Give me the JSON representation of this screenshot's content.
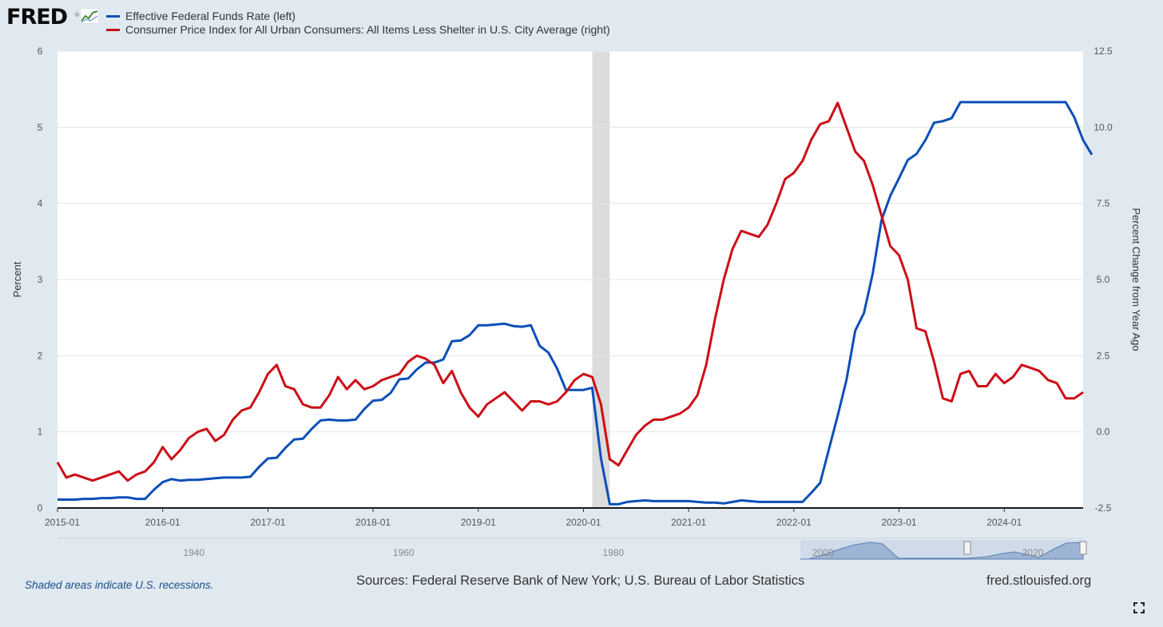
{
  "logo": {
    "text": "FRED",
    "mark": "®",
    "icon": "line-chart-icon"
  },
  "legend": [
    {
      "label": "Effective Federal Funds Rate (left)",
      "color": "#0b4fb8"
    },
    {
      "label": "Consumer Price Index for All Urban Consumers: All Items Less Shelter in U.S. City Average (right)",
      "color": "#cc0e16"
    }
  ],
  "footer": {
    "recession_note": "Shaded areas indicate U.S. recessions.",
    "sources": "Sources: Federal Reserve Bank of New York; U.S. Bureau of Labor Statistics",
    "site": "fred.stlouisfed.org"
  },
  "colors": {
    "background": "#e1e9f0",
    "plot": "#ffffff",
    "recession": "#dcdcdc",
    "navigator_fill": "#9db4d4"
  },
  "chart_data": {
    "type": "line",
    "xlabel": "",
    "ylabel": "Percent",
    "y2label": "Percent Change from Year Ago",
    "xlim": [
      "2015-01",
      "2024-10"
    ],
    "ylim": [
      0,
      6
    ],
    "y2lim": [
      -2.5,
      12.5
    ],
    "x_ticks": [
      "2015-01",
      "2016-01",
      "2017-01",
      "2018-01",
      "2019-01",
      "2020-01",
      "2021-01",
      "2022-01",
      "2023-01",
      "2024-01"
    ],
    "y_ticks": [
      "0",
      "1",
      "2",
      "3",
      "4",
      "5",
      "6"
    ],
    "y2_ticks": [
      "-2.5",
      "0.0",
      "2.5",
      "5.0",
      "7.5",
      "10.0",
      "12.5"
    ],
    "recessions": [
      {
        "start": "2020-02",
        "end": "2020-04"
      }
    ],
    "grid": true,
    "legend_position": "top-left",
    "navigator": {
      "labels": [
        "1940",
        "1960",
        "1980",
        "2000",
        "2020"
      ]
    },
    "series": [
      {
        "name": "Effective Federal Funds Rate (left)",
        "axis": "left",
        "color": "#0b4fb8",
        "points": [
          [
            "2015-01",
            0.11
          ],
          [
            "2015-02",
            0.11
          ],
          [
            "2015-03",
            0.11
          ],
          [
            "2015-04",
            0.12
          ],
          [
            "2015-05",
            0.12
          ],
          [
            "2015-06",
            0.13
          ],
          [
            "2015-07",
            0.13
          ],
          [
            "2015-08",
            0.14
          ],
          [
            "2015-09",
            0.14
          ],
          [
            "2015-10",
            0.12
          ],
          [
            "2015-11",
            0.12
          ],
          [
            "2015-12",
            0.24
          ],
          [
            "2016-01",
            0.34
          ],
          [
            "2016-02",
            0.38
          ],
          [
            "2016-03",
            0.36
          ],
          [
            "2016-04",
            0.37
          ],
          [
            "2016-05",
            0.37
          ],
          [
            "2016-06",
            0.38
          ],
          [
            "2016-07",
            0.39
          ],
          [
            "2016-08",
            0.4
          ],
          [
            "2016-09",
            0.4
          ],
          [
            "2016-10",
            0.4
          ],
          [
            "2016-11",
            0.41
          ],
          [
            "2016-12",
            0.54
          ],
          [
            "2017-01",
            0.65
          ],
          [
            "2017-02",
            0.66
          ],
          [
            "2017-03",
            0.79
          ],
          [
            "2017-04",
            0.9
          ],
          [
            "2017-05",
            0.91
          ],
          [
            "2017-06",
            1.04
          ],
          [
            "2017-07",
            1.15
          ],
          [
            "2017-08",
            1.16
          ],
          [
            "2017-09",
            1.15
          ],
          [
            "2017-10",
            1.15
          ],
          [
            "2017-11",
            1.16
          ],
          [
            "2017-12",
            1.3
          ],
          [
            "2018-01",
            1.41
          ],
          [
            "2018-02",
            1.42
          ],
          [
            "2018-03",
            1.51
          ],
          [
            "2018-04",
            1.69
          ],
          [
            "2018-05",
            1.7
          ],
          [
            "2018-06",
            1.82
          ],
          [
            "2018-07",
            1.91
          ],
          [
            "2018-08",
            1.91
          ],
          [
            "2018-09",
            1.95
          ],
          [
            "2018-10",
            2.19
          ],
          [
            "2018-11",
            2.2
          ],
          [
            "2018-12",
            2.27
          ],
          [
            "2019-01",
            2.4
          ],
          [
            "2019-02",
            2.4
          ],
          [
            "2019-03",
            2.41
          ],
          [
            "2019-04",
            2.42
          ],
          [
            "2019-05",
            2.39
          ],
          [
            "2019-06",
            2.38
          ],
          [
            "2019-07",
            2.4
          ],
          [
            "2019-08",
            2.13
          ],
          [
            "2019-09",
            2.04
          ],
          [
            "2019-10",
            1.83
          ],
          [
            "2019-11",
            1.55
          ],
          [
            "2019-12",
            1.55
          ],
          [
            "2020-01",
            1.55
          ],
          [
            "2020-02",
            1.58
          ],
          [
            "2020-03",
            0.65
          ],
          [
            "2020-04",
            0.05
          ],
          [
            "2020-05",
            0.05
          ],
          [
            "2020-06",
            0.08
          ],
          [
            "2020-07",
            0.09
          ],
          [
            "2020-08",
            0.1
          ],
          [
            "2020-09",
            0.09
          ],
          [
            "2020-10",
            0.09
          ],
          [
            "2020-11",
            0.09
          ],
          [
            "2020-12",
            0.09
          ],
          [
            "2021-01",
            0.09
          ],
          [
            "2021-02",
            0.08
          ],
          [
            "2021-03",
            0.07
          ],
          [
            "2021-04",
            0.07
          ],
          [
            "2021-05",
            0.06
          ],
          [
            "2021-06",
            0.08
          ],
          [
            "2021-07",
            0.1
          ],
          [
            "2021-08",
            0.09
          ],
          [
            "2021-09",
            0.08
          ],
          [
            "2021-10",
            0.08
          ],
          [
            "2021-11",
            0.08
          ],
          [
            "2021-12",
            0.08
          ],
          [
            "2022-01",
            0.08
          ],
          [
            "2022-02",
            0.08
          ],
          [
            "2022-03",
            0.2
          ],
          [
            "2022-04",
            0.33
          ],
          [
            "2022-05",
            0.77
          ],
          [
            "2022-06",
            1.21
          ],
          [
            "2022-07",
            1.68
          ],
          [
            "2022-08",
            2.33
          ],
          [
            "2022-09",
            2.56
          ],
          [
            "2022-10",
            3.08
          ],
          [
            "2022-11",
            3.78
          ],
          [
            "2022-12",
            4.1
          ],
          [
            "2023-01",
            4.33
          ],
          [
            "2023-02",
            4.57
          ],
          [
            "2023-03",
            4.65
          ],
          [
            "2023-04",
            4.83
          ],
          [
            "2023-05",
            5.06
          ],
          [
            "2023-06",
            5.08
          ],
          [
            "2023-07",
            5.12
          ],
          [
            "2023-08",
            5.33
          ],
          [
            "2023-09",
            5.33
          ],
          [
            "2023-10",
            5.33
          ],
          [
            "2023-11",
            5.33
          ],
          [
            "2023-12",
            5.33
          ],
          [
            "2024-01",
            5.33
          ],
          [
            "2024-02",
            5.33
          ],
          [
            "2024-03",
            5.33
          ],
          [
            "2024-04",
            5.33
          ],
          [
            "2024-05",
            5.33
          ],
          [
            "2024-06",
            5.33
          ],
          [
            "2024-07",
            5.33
          ],
          [
            "2024-08",
            5.33
          ],
          [
            "2024-09",
            5.13
          ],
          [
            "2024-10",
            4.83
          ],
          [
            "2024-11",
            4.64
          ]
        ]
      },
      {
        "name": "Consumer Price Index for All Urban Consumers: All Items Less Shelter in U.S. City Average (right)",
        "axis": "right",
        "color": "#cc0e16",
        "points": [
          [
            "2015-01",
            -1.0
          ],
          [
            "2015-02",
            -1.5
          ],
          [
            "2015-03",
            -1.4
          ],
          [
            "2015-04",
            -1.5
          ],
          [
            "2015-05",
            -1.6
          ],
          [
            "2015-06",
            -1.5
          ],
          [
            "2015-07",
            -1.4
          ],
          [
            "2015-08",
            -1.3
          ],
          [
            "2015-09",
            -1.6
          ],
          [
            "2015-10",
            -1.4
          ],
          [
            "2015-11",
            -1.3
          ],
          [
            "2015-12",
            -1.0
          ],
          [
            "2016-01",
            -0.5
          ],
          [
            "2016-02",
            -0.9
          ],
          [
            "2016-03",
            -0.6
          ],
          [
            "2016-04",
            -0.2
          ],
          [
            "2016-05",
            0.0
          ],
          [
            "2016-06",
            0.1
          ],
          [
            "2016-07",
            -0.3
          ],
          [
            "2016-08",
            -0.1
          ],
          [
            "2016-09",
            0.4
          ],
          [
            "2016-10",
            0.7
          ],
          [
            "2016-11",
            0.8
          ],
          [
            "2016-12",
            1.3
          ],
          [
            "2017-01",
            1.9
          ],
          [
            "2017-02",
            2.2
          ],
          [
            "2017-03",
            1.5
          ],
          [
            "2017-04",
            1.4
          ],
          [
            "2017-05",
            0.9
          ],
          [
            "2017-06",
            0.8
          ],
          [
            "2017-07",
            0.8
          ],
          [
            "2017-08",
            1.2
          ],
          [
            "2017-09",
            1.8
          ],
          [
            "2017-10",
            1.4
          ],
          [
            "2017-11",
            1.7
          ],
          [
            "2017-12",
            1.4
          ],
          [
            "2018-01",
            1.5
          ],
          [
            "2018-02",
            1.7
          ],
          [
            "2018-03",
            1.8
          ],
          [
            "2018-04",
            1.9
          ],
          [
            "2018-05",
            2.3
          ],
          [
            "2018-06",
            2.5
          ],
          [
            "2018-07",
            2.4
          ],
          [
            "2018-08",
            2.2
          ],
          [
            "2018-09",
            1.6
          ],
          [
            "2018-10",
            2.0
          ],
          [
            "2018-11",
            1.3
          ],
          [
            "2018-12",
            0.8
          ],
          [
            "2019-01",
            0.5
          ],
          [
            "2019-02",
            0.9
          ],
          [
            "2019-03",
            1.1
          ],
          [
            "2019-04",
            1.3
          ],
          [
            "2019-05",
            1.0
          ],
          [
            "2019-06",
            0.7
          ],
          [
            "2019-07",
            1.0
          ],
          [
            "2019-08",
            1.0
          ],
          [
            "2019-09",
            0.9
          ],
          [
            "2019-10",
            1.0
          ],
          [
            "2019-11",
            1.3
          ],
          [
            "2019-12",
            1.7
          ],
          [
            "2020-01",
            1.9
          ],
          [
            "2020-02",
            1.8
          ],
          [
            "2020-03",
            0.9
          ],
          [
            "2020-04",
            -0.9
          ],
          [
            "2020-05",
            -1.1
          ],
          [
            "2020-06",
            -0.6
          ],
          [
            "2020-07",
            -0.1
          ],
          [
            "2020-08",
            0.2
          ],
          [
            "2020-09",
            0.4
          ],
          [
            "2020-10",
            0.4
          ],
          [
            "2020-11",
            0.5
          ],
          [
            "2020-12",
            0.6
          ],
          [
            "2021-01",
            0.8
          ],
          [
            "2021-02",
            1.2
          ],
          [
            "2021-03",
            2.2
          ],
          [
            "2021-04",
            3.7
          ],
          [
            "2021-05",
            5.0
          ],
          [
            "2021-06",
            6.0
          ],
          [
            "2021-07",
            6.6
          ],
          [
            "2021-08",
            6.5
          ],
          [
            "2021-09",
            6.4
          ],
          [
            "2021-10",
            6.8
          ],
          [
            "2021-11",
            7.5
          ],
          [
            "2021-12",
            8.3
          ],
          [
            "2022-01",
            8.5
          ],
          [
            "2022-02",
            8.9
          ],
          [
            "2022-03",
            9.6
          ],
          [
            "2022-04",
            10.1
          ],
          [
            "2022-05",
            10.2
          ],
          [
            "2022-06",
            10.8
          ],
          [
            "2022-07",
            10.0
          ],
          [
            "2022-08",
            9.2
          ],
          [
            "2022-09",
            8.9
          ],
          [
            "2022-10",
            8.1
          ],
          [
            "2022-11",
            7.1
          ],
          [
            "2022-12",
            6.1
          ],
          [
            "2023-01",
            5.8
          ],
          [
            "2023-02",
            5.0
          ],
          [
            "2023-03",
            3.4
          ],
          [
            "2023-04",
            3.3
          ],
          [
            "2023-05",
            2.3
          ],
          [
            "2023-06",
            1.1
          ],
          [
            "2023-07",
            1.0
          ],
          [
            "2023-08",
            1.9
          ],
          [
            "2023-09",
            2.0
          ],
          [
            "2023-10",
            1.5
          ],
          [
            "2023-11",
            1.5
          ],
          [
            "2023-12",
            1.9
          ],
          [
            "2024-01",
            1.6
          ],
          [
            "2024-02",
            1.8
          ],
          [
            "2024-03",
            2.2
          ],
          [
            "2024-04",
            2.1
          ],
          [
            "2024-05",
            2.0
          ],
          [
            "2024-06",
            1.7
          ],
          [
            "2024-07",
            1.6
          ],
          [
            "2024-08",
            1.1
          ],
          [
            "2024-09",
            1.1
          ],
          [
            "2024-10",
            1.3
          ]
        ]
      }
    ]
  }
}
